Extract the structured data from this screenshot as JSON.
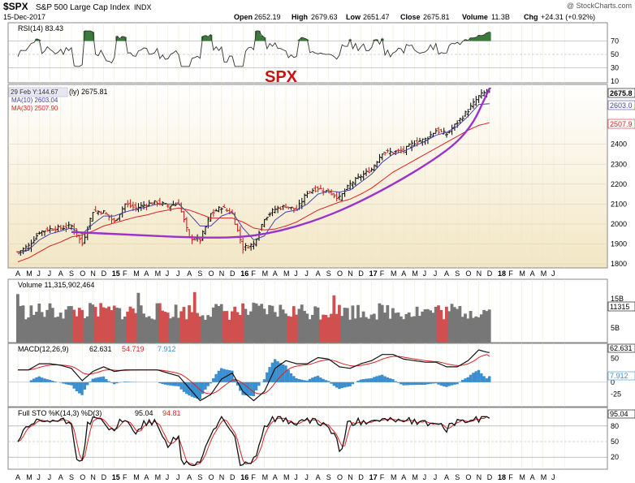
{
  "header": {
    "symbol": "$SPX",
    "name": "S&P 500 Large Cap Index",
    "exchange": "INDX",
    "date": "15-Dec-2017",
    "watermark": "@ StockCharts.com",
    "open_label": "Open",
    "open": "2652.19",
    "high_label": "High",
    "high": "2679.63",
    "low_label": "Low",
    "low": "2651.47",
    "close_label": "Close",
    "close": "2675.81",
    "volume_label": "Volume",
    "volume": "11.3B",
    "chg_label": "Chg",
    "chg": "+24.31 (+0.92%)"
  },
  "annotation": {
    "text": "SPX",
    "color": "#cc1111"
  },
  "colors": {
    "background": "#ffffff",
    "panel_gradient_top": "#ffffff",
    "panel_gradient_bottom": "#f2e6c4",
    "up_bar": "#111111",
    "down_bar": "#cc2222",
    "ma10": "#4444aa",
    "ma30": "#dd2222",
    "trend": "#9933cc",
    "volume_up": "#777777",
    "volume_down": "#d05050",
    "macd_line": "#111111",
    "macd_signal": "#dd2222",
    "histogram": "#3a8fd0",
    "rsi_fill": "#3a7a3a",
    "stk": "#111111",
    "std": "#dd2222"
  },
  "rsi": {
    "label": "RSI(14) 83.43",
    "current": 83.43,
    "ticks": [
      "70",
      "50",
      "30",
      "10"
    ]
  },
  "price_panel": {
    "ma_legend_title": "(ly) 2675.81",
    "tooltip": "29 Feb Y:144.67",
    "ma10_label": "MA(10) 2603.04",
    "ma30_label": "MA(30) 2507.90",
    "last_tag": "2675.8",
    "ma10_tag": "2603.0",
    "ma30_tag": "2507.9",
    "ticks": [
      "2400",
      "2300",
      "2200",
      "2100",
      "2000",
      "1900",
      "1800"
    ]
  },
  "volume_panel": {
    "label": "Volume 11,315,902,464",
    "ticks": [
      "15B",
      "5B"
    ],
    "tag": "11315"
  },
  "macd_panel": {
    "label_prefix": "MACD(12,26,9)",
    "macd": "62.631",
    "signal": "54.719",
    "histogram": "7.912",
    "ticks": [
      "50",
      "25",
      "0",
      "-25"
    ],
    "tag": "62.631",
    "hist_tag": "7.912"
  },
  "sto_panel": {
    "label_prefix": "Full STO %K(14,3) %D(3)",
    "k": "95.04",
    "d": "94.81",
    "ticks": [
      "80",
      "50",
      "20"
    ],
    "tag": "95.04"
  },
  "x_axis": {
    "months": [
      "A",
      "M",
      "J",
      "J",
      "A",
      "S",
      "O",
      "N",
      "D",
      "15",
      "F",
      "M",
      "A",
      "M",
      "J",
      "J",
      "A",
      "S",
      "O",
      "N",
      "D",
      "16",
      "F",
      "M",
      "A",
      "M",
      "J",
      "J",
      "A",
      "S",
      "O",
      "N",
      "D",
      "17",
      "F",
      "M",
      "A",
      "M",
      "J",
      "J",
      "A",
      "S",
      "O",
      "N",
      "D",
      "18",
      "F",
      "M",
      "A",
      "M",
      "J"
    ],
    "year_labels": [
      "15",
      "16",
      "17",
      "18"
    ]
  },
  "chart_data": {
    "type": "line",
    "frequency": "weekly",
    "x": [
      "2014-04",
      "2014-05",
      "2014-06",
      "2014-07",
      "2014-08",
      "2014-09",
      "2014-10",
      "2014-11",
      "2014-12",
      "2015-01",
      "2015-02",
      "2015-03",
      "2015-04",
      "2015-05",
      "2015-06",
      "2015-07",
      "2015-08",
      "2015-09",
      "2015-10",
      "2015-11",
      "2015-12",
      "2016-01",
      "2016-02",
      "2016-03",
      "2016-04",
      "2016-05",
      "2016-06",
      "2016-07",
      "2016-08",
      "2016-09",
      "2016-10",
      "2016-11",
      "2016-12",
      "2017-01",
      "2017-02",
      "2017-03",
      "2017-04",
      "2017-05",
      "2017-06",
      "2017-07",
      "2017-08",
      "2017-09",
      "2017-10",
      "2017-11",
      "2017-12"
    ],
    "series": [
      {
        "name": "Close",
        "values": [
          1860,
          1890,
          1960,
          1975,
          1980,
          1990,
          1900,
          2065,
          2060,
          2010,
          2100,
          2080,
          2100,
          2110,
          2090,
          2105,
          1930,
          1920,
          2050,
          2085,
          2050,
          1880,
          1900,
          2030,
          2075,
          2090,
          2070,
          2160,
          2180,
          2160,
          2130,
          2200,
          2240,
          2275,
          2360,
          2360,
          2370,
          2410,
          2425,
          2470,
          2450,
          2510,
          2570,
          2640,
          2675.81
        ]
      },
      {
        "name": "MA(10)",
        "values": [
          1850,
          1870,
          1920,
          1950,
          1965,
          1980,
          1950,
          2000,
          2040,
          2040,
          2060,
          2075,
          2085,
          2100,
          2100,
          2100,
          2050,
          1990,
          1990,
          2040,
          2060,
          1980,
          1920,
          1940,
          2020,
          2060,
          2070,
          2100,
          2150,
          2165,
          2160,
          2170,
          2210,
          2250,
          2310,
          2350,
          2365,
          2390,
          2415,
          2445,
          2460,
          2490,
          2540,
          2600,
          2603.04
        ]
      },
      {
        "name": "MA(30)",
        "values": [
          1810,
          1830,
          1860,
          1890,
          1910,
          1935,
          1945,
          1965,
          1990,
          2005,
          2020,
          2035,
          2045,
          2060,
          2070,
          2080,
          2070,
          2050,
          2030,
          2030,
          2030,
          2010,
          1980,
          1970,
          1975,
          1990,
          2010,
          2040,
          2070,
          2090,
          2110,
          2125,
          2150,
          2180,
          2220,
          2260,
          2290,
          2320,
          2350,
          2380,
          2410,
          2440,
          2470,
          2495,
          2507.9
        ]
      }
    ],
    "trend_line": {
      "name": "Rounded bottom",
      "points": [
        [
          "2014-09",
          1960
        ],
        [
          "2015-03",
          1945
        ],
        [
          "2015-09",
          1930
        ],
        [
          "2016-02",
          1935
        ],
        [
          "2016-07",
          2000
        ],
        [
          "2016-12",
          2110
        ],
        [
          "2017-06",
          2290
        ],
        [
          "2017-10",
          2450
        ],
        [
          "2017-12",
          2680
        ]
      ]
    },
    "rsi": {
      "current": 83.43,
      "range": [
        10,
        90
      ],
      "ticks": [
        10,
        30,
        50,
        70
      ]
    },
    "volume": {
      "current": 11315902464,
      "ylim": [
        0,
        20000000000
      ],
      "ticks": [
        5000000000,
        15000000000
      ]
    },
    "macd": {
      "macd": 62.631,
      "signal": 54.719,
      "histogram": 7.912,
      "ylim": [
        -50,
        70
      ],
      "ticks": [
        -25,
        0,
        25,
        50
      ]
    },
    "full_sto": {
      "k": 95.04,
      "d": 94.81,
      "ylim": [
        0,
        100
      ],
      "ticks": [
        20,
        50,
        80
      ]
    },
    "ylim": [
      1780,
      2700
    ],
    "grid": true
  }
}
